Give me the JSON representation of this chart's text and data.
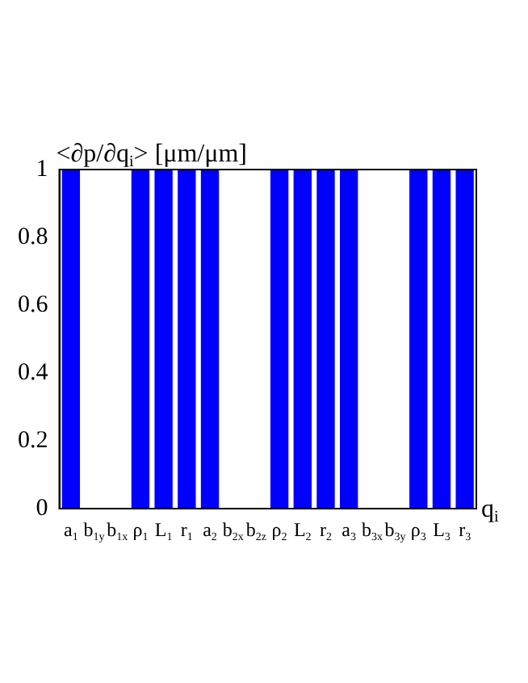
{
  "chart_data": {
    "type": "bar",
    "title": "<∂p/∂q$_{i}$> [μm/μm]",
    "xlabel": "q$_{i}$",
    "categories": [
      "a$_{1}$",
      "b$_{1y}$",
      "b$_{1x}$",
      "ρ$_{1}$",
      "L$_{1}$",
      "r$_{1}$",
      "a$_{2}$",
      "b$_{2x}$",
      "b$_{2z}$",
      "ρ$_{2}$",
      "L$_{2}$",
      "r$_{2}$",
      "a$_{3}$",
      "b$_{3x}$",
      "b$_{3y}$",
      "ρ$_{3}$",
      "L$_{3}$",
      "r$_{3}$"
    ],
    "values": [
      1,
      0,
      0,
      1,
      1,
      1,
      1,
      0,
      0,
      1,
      1,
      1,
      1,
      0,
      0,
      1,
      1,
      1
    ],
    "color": "#0000ff",
    "ylim": [
      0,
      1
    ],
    "yticks": [
      0,
      0.2,
      0.4,
      0.6,
      0.8,
      1
    ],
    "grid": false
  }
}
